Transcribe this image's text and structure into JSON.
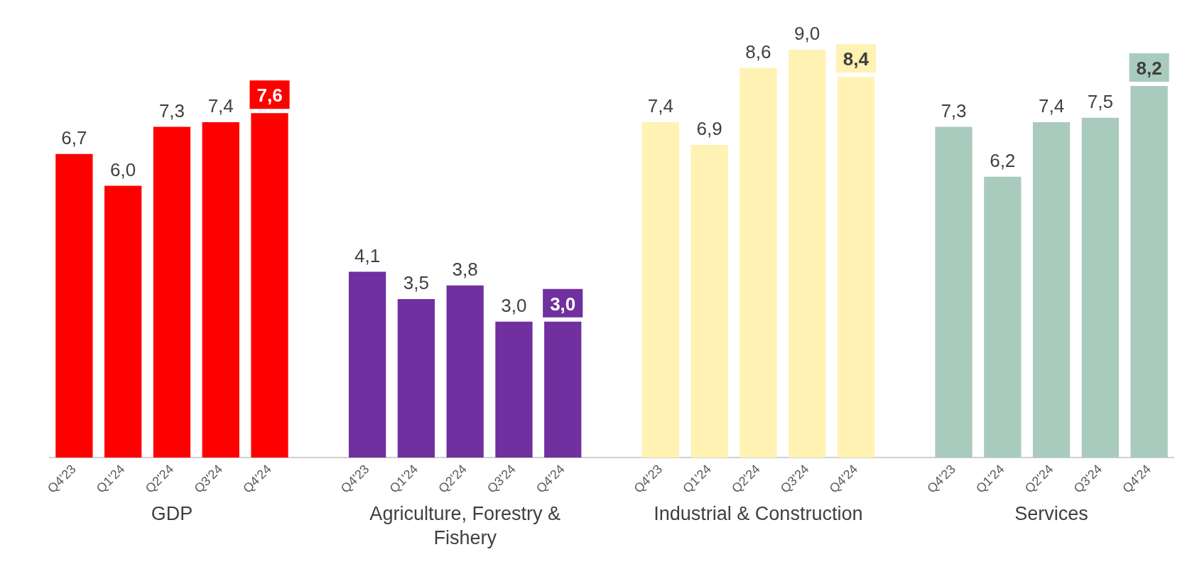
{
  "chart_data": {
    "type": "bar",
    "categories": [
      "Q4'23",
      "Q1'24",
      "Q2'24",
      "Q3'24",
      "Q4'24",
      null,
      "Q4'23",
      "Q1'24",
      "Q2'24",
      "Q3'24",
      "Q4'24",
      null,
      "Q4'23",
      "Q1'24",
      "Q2'24",
      "Q3'24",
      "Q4'24",
      null,
      "Q4'23",
      "Q1'24",
      "Q2'24",
      "Q3'24",
      "Q4'24"
    ],
    "series": [
      {
        "name": "GDP",
        "color": "#ff0000",
        "values": [
          6.7,
          6.0,
          7.3,
          7.4,
          7.6,
          null,
          null,
          null,
          null,
          null,
          null,
          null,
          null,
          null,
          null,
          null,
          null,
          null,
          null,
          null,
          null,
          null,
          null
        ],
        "value_labels": [
          "6,7",
          "6,0",
          "7,3",
          "7,4",
          "7,6",
          null,
          null,
          null,
          null,
          null,
          null,
          null,
          null,
          null,
          null,
          null,
          null,
          null,
          null,
          null,
          null,
          null,
          null
        ]
      },
      {
        "name": "Agriculture, Forestry & Fishery",
        "color": "#7030a0",
        "values": [
          null,
          null,
          null,
          null,
          null,
          null,
          4.1,
          3.5,
          3.8,
          3.0,
          3.0,
          null,
          null,
          null,
          null,
          null,
          null,
          null,
          null,
          null,
          null,
          null,
          null
        ],
        "value_labels": [
          null,
          null,
          null,
          null,
          null,
          null,
          "4,1",
          "3,5",
          "3,8",
          "3,0",
          "3,0",
          null,
          null,
          null,
          null,
          null,
          null,
          null,
          null,
          null,
          null,
          null,
          null
        ]
      },
      {
        "name": "Industrial & Construction",
        "color": "#fff2b3",
        "values": [
          null,
          null,
          null,
          null,
          null,
          null,
          null,
          null,
          null,
          null,
          null,
          null,
          7.4,
          6.9,
          8.6,
          9.0,
          8.4,
          null,
          null,
          null,
          null,
          null,
          null
        ],
        "value_labels": [
          null,
          null,
          null,
          null,
          null,
          null,
          null,
          null,
          null,
          null,
          null,
          null,
          "7,4",
          "6,9",
          "8,6",
          "9,0",
          "8,4",
          null,
          null,
          null,
          null,
          null,
          null
        ]
      },
      {
        "name": "Services",
        "color": "#a9cbbd",
        "values": [
          null,
          null,
          null,
          null,
          null,
          null,
          null,
          null,
          null,
          null,
          null,
          null,
          null,
          null,
          null,
          null,
          null,
          null,
          7.3,
          6.2,
          7.4,
          7.5,
          8.2
        ],
        "value_labels": [
          null,
          null,
          null,
          null,
          null,
          null,
          null,
          null,
          null,
          null,
          null,
          null,
          null,
          null,
          null,
          null,
          null,
          null,
          "7,3",
          "6,2",
          "7,4",
          "7,5",
          "8,2"
        ]
      }
    ],
    "legend": false,
    "grid": false
  }
}
